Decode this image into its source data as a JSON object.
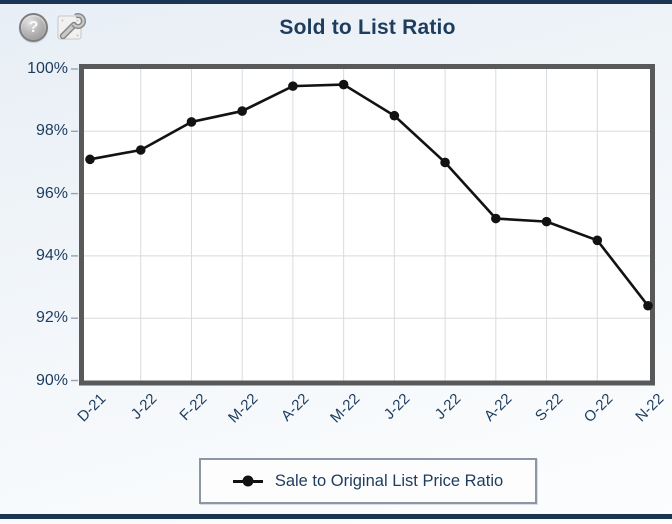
{
  "toolbar": {
    "help_glyph": "?",
    "icons": {
      "help": "question-help-icon",
      "settings": "wrench-settings-icon"
    }
  },
  "chart_data": {
    "type": "line",
    "title": "Sold to List Ratio",
    "categories": [
      "D-21",
      "J-22",
      "F-22",
      "M-22",
      "A-22",
      "M-22",
      "J-22",
      "J-22",
      "A-22",
      "S-22",
      "O-22",
      "N-22"
    ],
    "series": [
      {
        "name": "Sale to Original List Price Ratio",
        "values": [
          97.1,
          97.4,
          98.3,
          98.65,
          99.45,
          99.5,
          98.5,
          97.0,
          95.2,
          95.1,
          94.5,
          92.4
        ]
      }
    ],
    "ylim": [
      90,
      100
    ],
    "y_ticks": [
      "100%",
      "98%",
      "96%",
      "94%",
      "92%",
      "90%"
    ],
    "y_tick_values": [
      100,
      98,
      96,
      94,
      92,
      90
    ],
    "x_label_rotation": -45,
    "grid": true,
    "legend_position": "bottom",
    "marker": "circle"
  },
  "colors": {
    "navy_text": "#1d3c5e",
    "bar_navy": "#1a3553",
    "line_black": "#121212",
    "plot_border": "#58595b",
    "gridline": "#d9dbdd",
    "tick": "#9aa3ad",
    "legend_border": "#8d96a6",
    "plot_background": "#ffffff"
  }
}
